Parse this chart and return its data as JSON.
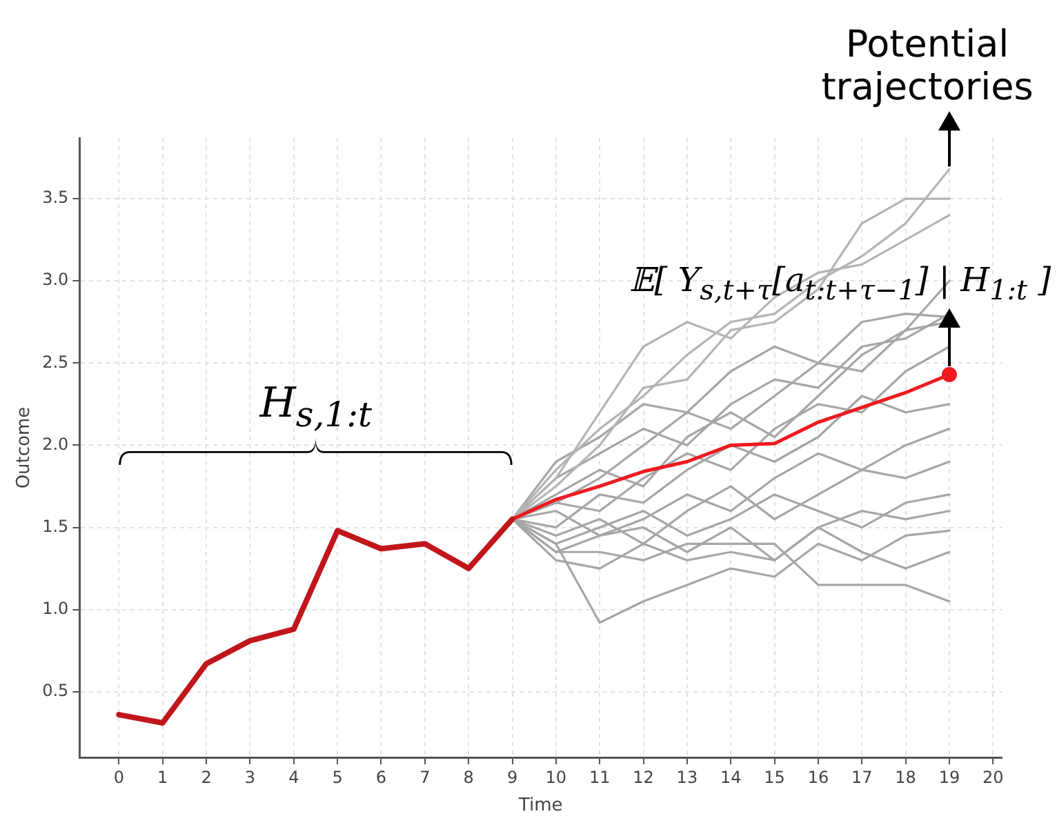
{
  "chart_data": {
    "type": "line",
    "xlabel": "Time",
    "ylabel": "Outcome",
    "xlim": [
      -0.9,
      20.2
    ],
    "xticks": [
      0,
      1,
      2,
      3,
      4,
      5,
      6,
      7,
      8,
      9,
      10,
      11,
      12,
      13,
      14,
      15,
      16,
      17,
      18,
      19,
      20
    ],
    "ylim": [
      0.1,
      3.87
    ],
    "yticks": [
      0.5,
      {
        "value": 1,
        "label": "1.0"
      },
      1.5,
      {
        "value": 2,
        "label": "2.0"
      },
      2.5,
      {
        "value": 3,
        "label": "3.0"
      },
      3.5
    ],
    "grid": true,
    "legend": false,
    "marker": "none",
    "line_style": "solid",
    "annotations": [
      "H$_{s,1:t}$",
      {
        "text": "𝔼[ Y$_{s,t+τ}$[a$_{t:t+τ−1}$] | H$_{1:t}$ ]",
        "x": 19,
        "y": 2.43
      },
      {
        "text": "Potential trajectories",
        "x": 19,
        "y": 3.68
      }
    ],
    "series": [
      {
        "color": "#c0161b",
        "x": [
          0,
          1,
          2,
          3,
          4,
          5,
          6,
          7,
          8,
          9
        ],
        "values": [
          0.36,
          0.31,
          0.67,
          0.81,
          0.88,
          1.48,
          1.37,
          1.4,
          1.25,
          1.55
        ]
      },
      {
        "color": "#ee1a1f",
        "x": [
          9,
          10,
          11,
          12,
          13,
          14,
          15,
          16,
          17,
          18,
          19
        ],
        "values": [
          1.55,
          1.67,
          1.75,
          1.84,
          1.9,
          2.0,
          2.01,
          2.14,
          2.23,
          2.32,
          2.43
        ]
      },
      {
        "type": "scatter",
        "marker": "circle",
        "color": "#ee1a1f",
        "x": [
          19
        ],
        "values": [
          2.43
        ]
      },
      {
        "color": "#b4b4b4",
        "x": [
          9,
          10,
          11,
          12,
          13,
          14,
          15,
          16,
          17,
          18,
          19
        ],
        "values": [
          1.55,
          1.85,
          2.1,
          2.3,
          2.55,
          2.75,
          2.8,
          3.0,
          3.15,
          3.35,
          3.68
        ]
      },
      {
        "color": "#b4b4b4",
        "x": [
          9,
          10,
          11,
          12,
          13,
          14,
          15,
          16,
          17,
          18,
          19
        ],
        "values": [
          1.55,
          1.75,
          2.0,
          2.35,
          2.4,
          2.7,
          2.75,
          2.95,
          3.35,
          3.5,
          3.5
        ]
      },
      {
        "color": "#b4b4b4",
        "x": [
          9,
          10,
          11,
          12,
          13,
          14,
          15,
          16,
          17,
          18,
          19
        ],
        "values": [
          1.55,
          1.8,
          2.2,
          2.6,
          2.75,
          2.65,
          2.9,
          3.05,
          3.1,
          3.25,
          3.4
        ]
      },
      {
        "color": "#a6a6a6",
        "x": [
          9,
          10,
          11,
          12,
          13,
          14,
          15,
          16,
          17,
          18,
          19
        ],
        "values": [
          1.55,
          1.9,
          2.05,
          2.25,
          2.2,
          2.45,
          2.6,
          2.5,
          2.75,
          2.8,
          2.78
        ]
      },
      {
        "color": "#a6a6a6",
        "x": [
          9,
          10,
          11,
          12,
          13,
          14,
          15,
          16,
          17,
          18,
          19
        ],
        "values": [
          1.55,
          1.7,
          1.85,
          1.75,
          2.05,
          2.2,
          2.05,
          2.3,
          2.55,
          2.7,
          2.75
        ]
      },
      {
        "color": "#a6a6a6",
        "x": [
          9,
          10,
          11,
          12,
          13,
          14,
          15,
          16,
          17,
          18,
          19
        ],
        "values": [
          1.55,
          1.65,
          1.6,
          1.8,
          1.95,
          1.85,
          2.1,
          2.25,
          2.2,
          2.45,
          2.6
        ]
      },
      {
        "color": "#a6a6a6",
        "x": [
          9,
          10,
          11,
          12,
          13,
          14,
          15,
          16,
          17,
          18,
          19
        ],
        "values": [
          1.55,
          1.5,
          1.7,
          1.65,
          1.85,
          2.0,
          1.9,
          2.05,
          2.3,
          2.2,
          2.25
        ]
      },
      {
        "color": "#a6a6a6",
        "x": [
          9,
          10,
          11,
          12,
          13,
          14,
          15,
          16,
          17,
          18,
          19
        ],
        "values": [
          1.55,
          1.6,
          1.45,
          1.55,
          1.7,
          1.6,
          1.8,
          1.95,
          1.85,
          2.0,
          2.1
        ]
      },
      {
        "color": "#a6a6a6",
        "x": [
          9,
          10,
          11,
          12,
          13,
          14,
          15,
          16,
          17,
          18,
          19
        ],
        "values": [
          1.55,
          1.45,
          1.55,
          1.4,
          1.6,
          1.75,
          1.55,
          1.7,
          1.85,
          1.8,
          1.9
        ]
      },
      {
        "color": "#a6a6a6",
        "x": [
          9,
          10,
          11,
          12,
          13,
          14,
          15,
          16,
          17,
          18,
          19
        ],
        "values": [
          1.55,
          1.4,
          1.5,
          1.6,
          1.45,
          1.55,
          1.7,
          1.6,
          1.5,
          1.65,
          1.7
        ]
      },
      {
        "color": "#a6a6a6",
        "x": [
          9,
          10,
          11,
          12,
          13,
          14,
          15,
          16,
          17,
          18,
          19
        ],
        "values": [
          1.55,
          1.35,
          1.45,
          1.5,
          1.35,
          1.5,
          1.3,
          1.5,
          1.6,
          1.55,
          1.6
        ]
      },
      {
        "color": "#a6a6a6",
        "x": [
          9,
          10,
          11,
          12,
          13,
          14,
          15,
          16,
          17,
          18,
          19
        ],
        "values": [
          1.55,
          1.4,
          0.92,
          1.05,
          1.15,
          1.25,
          1.2,
          1.4,
          1.3,
          1.45,
          1.48
        ]
      },
      {
        "color": "#a6a6a6",
        "x": [
          9,
          10,
          11,
          12,
          13,
          14,
          15,
          16,
          17,
          18,
          19
        ],
        "values": [
          1.55,
          1.3,
          1.25,
          1.4,
          1.3,
          1.35,
          1.3,
          1.5,
          1.35,
          1.25,
          1.35
        ]
      },
      {
        "color": "#a6a6a6",
        "x": [
          9,
          10,
          11,
          12,
          13,
          14,
          15,
          16,
          17,
          18,
          19
        ],
        "values": [
          1.55,
          1.35,
          1.35,
          1.3,
          1.4,
          1.4,
          1.4,
          1.15,
          1.15,
          1.15,
          1.05
        ]
      },
      {
        "color": "#a6a6a6",
        "x": [
          9,
          10,
          11,
          12,
          13,
          14,
          15,
          16,
          17,
          18,
          19
        ],
        "values": [
          1.55,
          1.8,
          1.95,
          2.1,
          2.0,
          2.25,
          2.4,
          2.35,
          2.6,
          2.65,
          2.8
        ]
      },
      {
        "color": "#a6a6a6",
        "x": [
          9,
          10,
          11,
          12,
          13,
          14,
          15,
          16,
          17,
          18,
          19
        ],
        "values": [
          1.55,
          1.65,
          1.8,
          2.0,
          2.2,
          2.1,
          2.3,
          2.5,
          2.45,
          2.7,
          3.0
        ]
      }
    ]
  }
}
